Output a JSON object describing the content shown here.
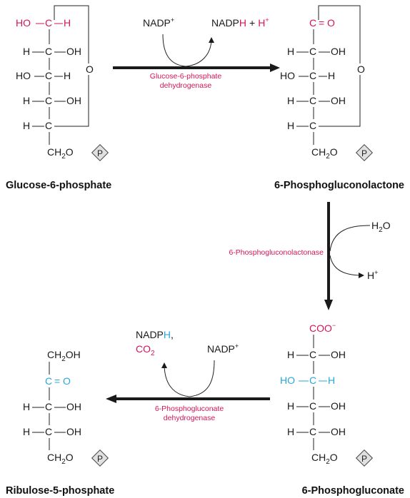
{
  "molecules": {
    "g6p": {
      "name": "Glucose-6-phosphate",
      "c1_ho": "HO",
      "c1_c": "C",
      "c1_h": "H",
      "c2_h": "H",
      "c2_c": "C",
      "c2_oh": "OH",
      "c3_ho": "HO",
      "c3_c": "C",
      "c3_h": "H",
      "c4_h": "H",
      "c4_c": "C",
      "c4_oh": "OH",
      "c5_h": "H",
      "c5_c": "C",
      "ring_o": "O",
      "ch2o": "CH",
      "ch2o_sub": "2",
      "ch2o_o": "O",
      "phosphate": "P"
    },
    "pgl": {
      "name": "6-Phosphogluconolactone",
      "c1_c": "C",
      "c1_eq": "=",
      "c1_o": "O",
      "c2_h": "H",
      "c2_c": "C",
      "c2_oh": "OH",
      "c3_ho": "HO",
      "c3_c": "C",
      "c3_h": "H",
      "c4_h": "H",
      "c4_c": "C",
      "c4_oh": "OH",
      "c5_h": "H",
      "c5_c": "C",
      "ring_o": "O",
      "ch2o": "CH",
      "ch2o_sub": "2",
      "ch2o_o": "O",
      "phosphate": "P"
    },
    "pg": {
      "name": "6-Phosphogluconate",
      "coo": "COO",
      "coo_charge": "−",
      "c2_h": "H",
      "c2_c": "C",
      "c2_oh": "OH",
      "c3_ho": "HO",
      "c3_c": "C",
      "c3_h": "H",
      "c4_h": "H",
      "c4_c": "C",
      "c4_oh": "OH",
      "c5_h": "H",
      "c5_c": "C",
      "c5_oh": "OH",
      "ch2o": "CH",
      "ch2o_sub": "2",
      "ch2o_o": "O",
      "phosphate": "P"
    },
    "ru5p": {
      "name": "Ribulose-5-phosphate",
      "ch2oh": "CH",
      "ch2oh_sub": "2",
      "ch2oh_oh": "OH",
      "c2_c": "C",
      "c2_eq": "=",
      "c2_o": "O",
      "c3_h": "H",
      "c3_c": "C",
      "c3_oh": "OH",
      "c4_h": "H",
      "c4_c": "C",
      "c4_oh": "OH",
      "ch2o": "CH",
      "ch2o_sub": "2",
      "ch2o_o": "O",
      "phosphate": "P"
    }
  },
  "reactions": {
    "r1": {
      "enzyme_line1": "Glucose-6-phosphate",
      "enzyme_line2": "dehydrogenase",
      "cofactor_in": "NADP",
      "cofactor_in_sup": "+",
      "product_nadp": "NADP",
      "product_h": "H",
      "product_plus": "+",
      "product_h2": "H",
      "product_h2_sup": "+"
    },
    "r2": {
      "enzyme": "6-Phosphogluconolactonase",
      "reactant": "H",
      "reactant_sub": "2",
      "reactant_o": "O",
      "product": "H",
      "product_sup": "+"
    },
    "r3": {
      "enzyme_line1": "6-Phosphogluconate",
      "enzyme_line2": "dehydrogenase",
      "product_nadp": "NADP",
      "product_h": "H",
      "product_comma": ",",
      "product_co": "CO",
      "product_co_sub": "2",
      "cofactor_in": "NADP",
      "cofactor_in_sup": "+"
    }
  },
  "colors": {
    "highlight_oxidation": "#d4145a",
    "highlight_carbonyl": "#2aa7d8",
    "arrow": "#1a1a1a",
    "phosphate_fill": "#e0e0e0"
  }
}
